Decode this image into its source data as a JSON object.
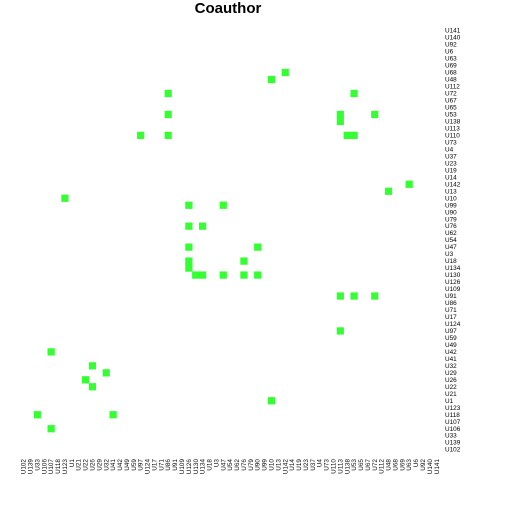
{
  "chart_data": {
    "type": "heatmap",
    "title": "Coauthor",
    "xlabel": "",
    "ylabel": "",
    "grid": false,
    "legend": "none",
    "cell_color": "#33ff33",
    "background": "#ffffff",
    "labels": [
      "U102",
      "U139",
      "U33",
      "U106",
      "U107",
      "U118",
      "U123",
      "U1",
      "U21",
      "U22",
      "U26",
      "U29",
      "U32",
      "U41",
      "U42",
      "U49",
      "U59",
      "U97",
      "U124",
      "U17",
      "U71",
      "U86",
      "U91",
      "U109",
      "U126",
      "U130",
      "U134",
      "U18",
      "U3",
      "U47",
      "U54",
      "U62",
      "U76",
      "U79",
      "U90",
      "U99",
      "U10",
      "U13",
      "U142",
      "U14",
      "U19",
      "U23",
      "U37",
      "U4",
      "U73",
      "U110",
      "U113",
      "U138",
      "U53",
      "U65",
      "U67",
      "U72",
      "U112",
      "U48",
      "U68",
      "U69",
      "U63",
      "U6",
      "U92",
      "U140",
      "U141"
    ],
    "cells": [
      [
        "U142",
        "U68"
      ],
      [
        "U10",
        "U48"
      ],
      [
        "U86",
        "U72"
      ],
      [
        "U53",
        "U72"
      ],
      [
        "U113",
        "U53"
      ],
      [
        "U113",
        "U138"
      ],
      [
        "U86",
        "U53"
      ],
      [
        "U72",
        "U53"
      ],
      [
        "U97",
        "U110"
      ],
      [
        "U86",
        "U110"
      ],
      [
        "U138",
        "U110"
      ],
      [
        "U53",
        "U110"
      ],
      [
        "U63",
        "U142"
      ],
      [
        "U48",
        "U13"
      ],
      [
        "U123",
        "U10"
      ],
      [
        "U126",
        "U99"
      ],
      [
        "U47",
        "U99"
      ],
      [
        "U126",
        "U76"
      ],
      [
        "U134",
        "U76"
      ],
      [
        "U126",
        "U47"
      ],
      [
        "U90",
        "U47"
      ],
      [
        "U126",
        "U18"
      ],
      [
        "U76",
        "U18"
      ],
      [
        "U126",
        "U134"
      ],
      [
        "U130",
        "U130"
      ],
      [
        "U134",
        "U130"
      ],
      [
        "U47",
        "U130"
      ],
      [
        "U76",
        "U130"
      ],
      [
        "U90",
        "U130"
      ],
      [
        "U113",
        "U91"
      ],
      [
        "U53",
        "U91"
      ],
      [
        "U72",
        "U91"
      ],
      [
        "U113",
        "U97"
      ],
      [
        "U107",
        "U42"
      ],
      [
        "U26",
        "U32"
      ],
      [
        "U32",
        "U29"
      ],
      [
        "U22",
        "U26"
      ],
      [
        "U26",
        "U22"
      ],
      [
        "U10",
        "U1"
      ],
      [
        "U33",
        "U118"
      ],
      [
        "U41",
        "U118"
      ],
      [
        "U107",
        "U106"
      ]
    ]
  }
}
